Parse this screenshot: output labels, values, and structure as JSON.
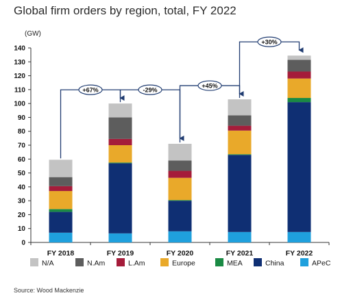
{
  "chart_data": {
    "type": "bar",
    "stacked": true,
    "title": "Global firm orders by region, total, FY 2022",
    "ylabel": "(GW)",
    "xlabel": "",
    "ylim": [
      0,
      140
    ],
    "yticks": [
      0,
      10,
      20,
      30,
      40,
      50,
      60,
      70,
      80,
      90,
      100,
      110,
      120,
      130,
      140
    ],
    "categories": [
      "FY 2018",
      "FY 2019",
      "FY 2020",
      "FY 2021",
      "FY 2022"
    ],
    "series": [
      {
        "name": "APeC",
        "color": "#1fa0dd",
        "values": [
          7,
          6.5,
          8,
          7.5,
          7.5
        ]
      },
      {
        "name": "China",
        "color": "#0f2f73",
        "values": [
          15,
          50.5,
          22,
          55.5,
          93.5
        ]
      },
      {
        "name": "MEA",
        "color": "#1a8a44",
        "values": [
          2,
          0.5,
          0.5,
          0.5,
          3
        ]
      },
      {
        "name": "Europe",
        "color": "#e9a92a",
        "values": [
          13,
          12.5,
          16,
          17,
          14
        ]
      },
      {
        "name": "L.Am",
        "color": "#a51c3a",
        "values": [
          3.5,
          4.5,
          5,
          3.5,
          5
        ]
      },
      {
        "name": "N.Am",
        "color": "#5d5d5d",
        "values": [
          6.5,
          15.5,
          7.5,
          7.5,
          8.5
        ]
      },
      {
        "name": "N/A",
        "color": "#c3c3c3",
        "values": [
          12.5,
          10,
          12,
          11.5,
          3
        ]
      }
    ],
    "legend_order": [
      "N/A",
      "N.Am",
      "L.Am",
      "Europe",
      "MEA",
      "China",
      "APeC"
    ],
    "legend_position": "bottom",
    "grid": false,
    "annotations": [
      {
        "text": "+67%",
        "from": "FY 2018",
        "to": "FY 2019"
      },
      {
        "text": "-29%",
        "from": "FY 2019",
        "to": "FY 2020"
      },
      {
        "text": "+45%",
        "from": "FY 2020",
        "to": "FY 2021"
      },
      {
        "text": "+30%",
        "from": "FY 2021",
        "to": "FY 2022"
      }
    ],
    "source": "Source: Wood Mackenzie"
  },
  "colors": {
    "axis": "#333333",
    "annotation": "#1f3b70"
  }
}
